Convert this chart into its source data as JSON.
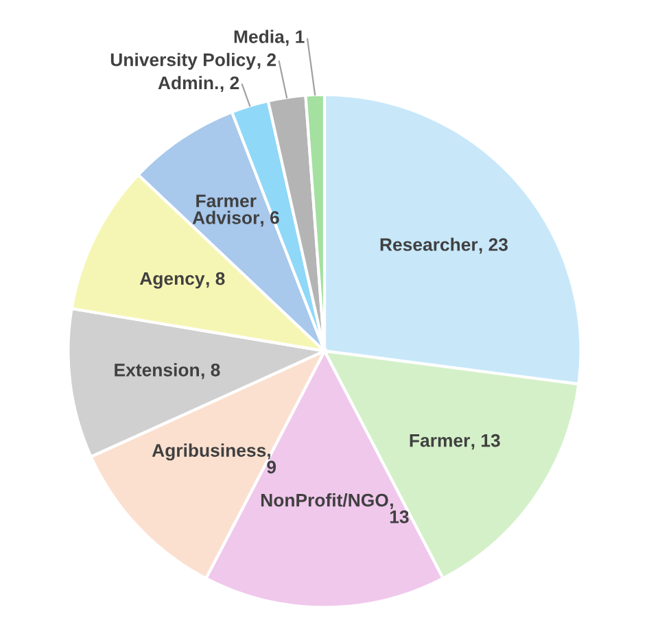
{
  "chart_data": {
    "type": "pie",
    "categories": [
      "Researcher",
      "Farmer",
      "NonProfit/NGO",
      "Agribusiness",
      "Extension",
      "Agency",
      "Farmer Advisor",
      "Admin.",
      "University Policy",
      "Media"
    ],
    "values": [
      23,
      13,
      13,
      9,
      8,
      8,
      6,
      2,
      2,
      1
    ],
    "colors": [
      "#c8e8fa",
      "#d4f0c8",
      "#f0c8ec",
      "#fbe0d0",
      "#d0d0d0",
      "#f6f6b4",
      "#a8c8ec",
      "#90d8f8",
      "#b4b4b4",
      "#a4e0a0"
    ],
    "value_labels": [
      ", 23",
      ", 13",
      ",\n13",
      ",\n9",
      ", 8",
      ", 8",
      ", 6",
      ", 2",
      ", 2",
      ", 1"
    ],
    "legend": false
  }
}
